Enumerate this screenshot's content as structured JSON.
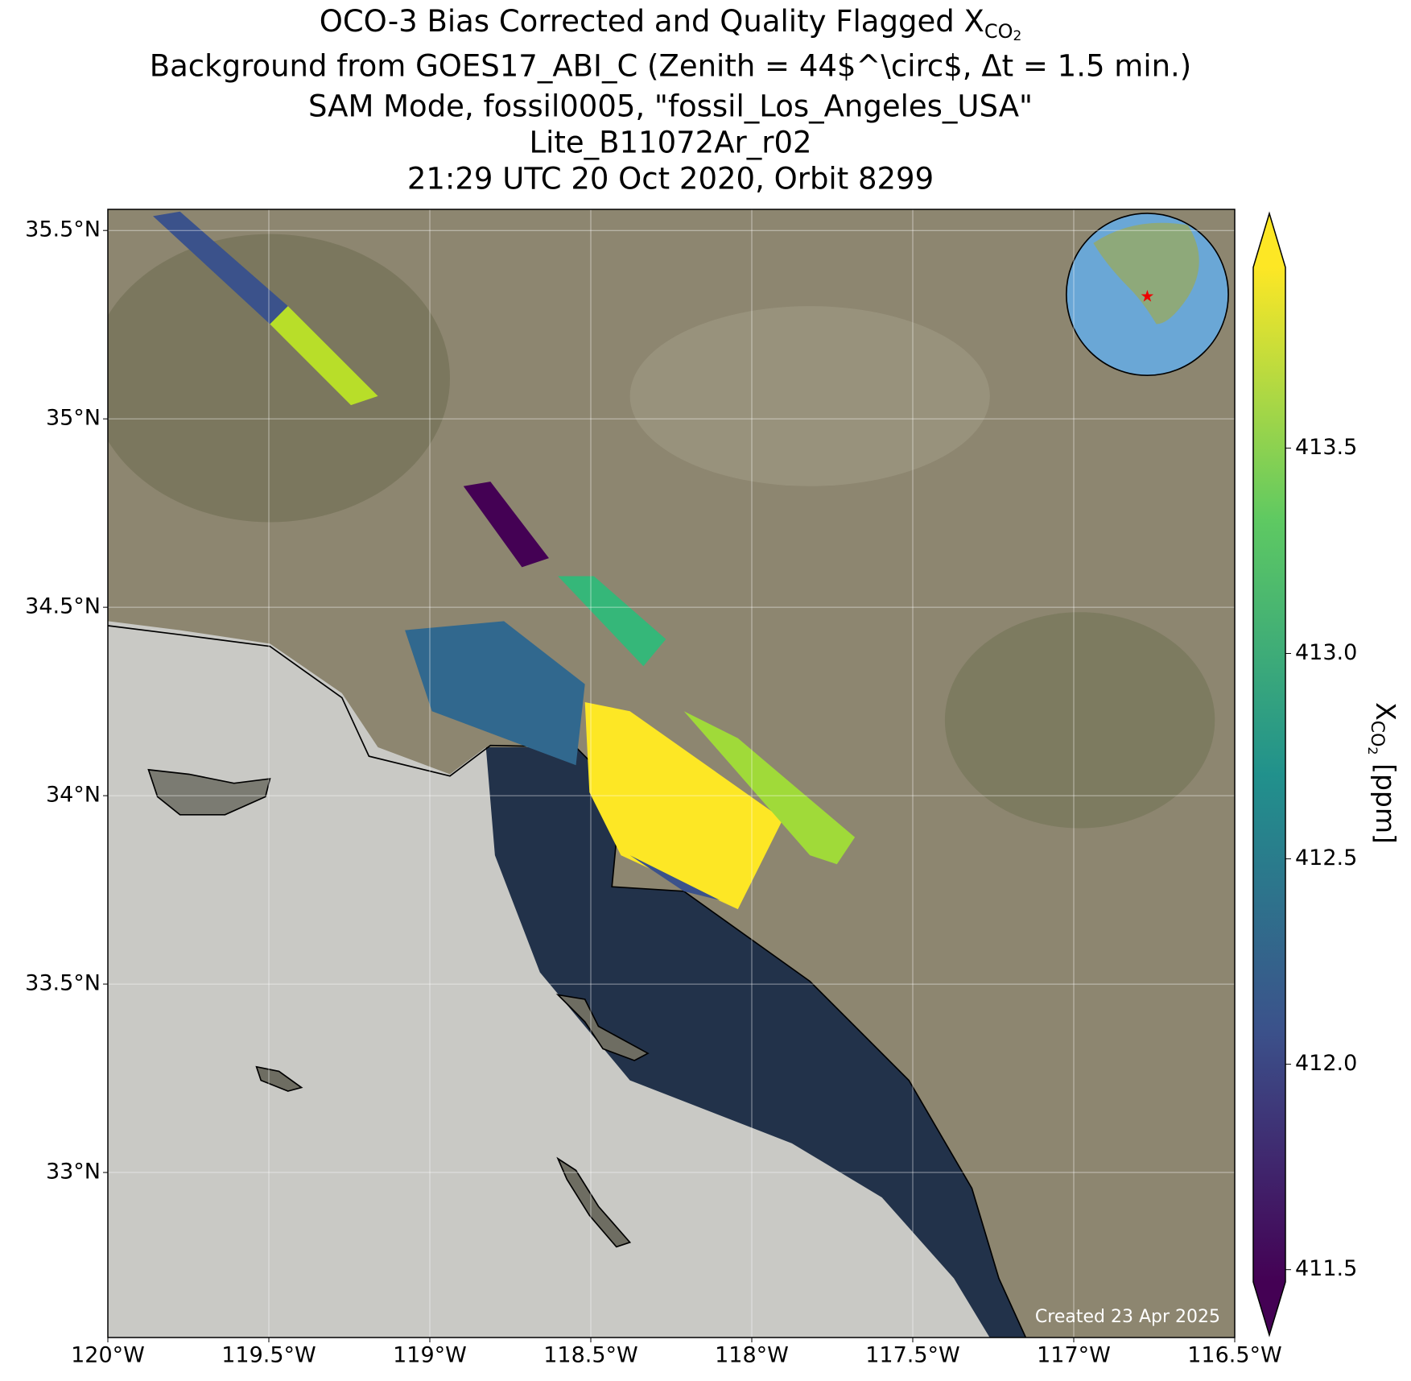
{
  "title": {
    "line1": {
      "text": "OCO-3 Bias Corrected and Quality Flagged X",
      "sub": "CO",
      "subsub": "2"
    },
    "line2": "Background from GOES17_ABI_C (Zenith = 44$^\\circ$, Δt =  1.5 min.)",
    "line3": "SAM Mode, fossil0005, \"fossil_Los_Angeles_USA\"",
    "line4": "Lite_B11072Ar_r02",
    "line5": "21:29 UTC 20 Oct 2020, Orbit 8299"
  },
  "map": {
    "xlim": [
      -120,
      -116.5
    ],
    "ylim": [
      32.562,
      35.556
    ],
    "grid": true,
    "xticks": [
      {
        "value": -120,
        "label": "120°W"
      },
      {
        "value": -119.5,
        "label": "119.5°W"
      },
      {
        "value": -119,
        "label": "119°W"
      },
      {
        "value": -118.5,
        "label": "118.5°W"
      },
      {
        "value": -118,
        "label": "118°W"
      },
      {
        "value": -117.5,
        "label": "117.5°W"
      },
      {
        "value": -117,
        "label": "117°W"
      },
      {
        "value": -116.5,
        "label": "116.5°W"
      }
    ],
    "yticks": [
      {
        "value": 33,
        "label": "33°N"
      },
      {
        "value": 33.5,
        "label": "33.5°N"
      },
      {
        "value": 34,
        "label": "34°N"
      },
      {
        "value": 34.5,
        "label": "34.5°N"
      },
      {
        "value": 35,
        "label": "35°N"
      },
      {
        "value": 35.5,
        "label": "35.5°N"
      }
    ]
  },
  "colorbar": {
    "label": {
      "text": "X",
      "sub": "CO",
      "subsub": "2",
      "unit": " [ppm]"
    },
    "lim": [
      411.47,
      413.94
    ],
    "ticks": [
      {
        "value": 411.5,
        "label": "411.5"
      },
      {
        "value": 412,
        "label": "412.0"
      },
      {
        "value": 412.5,
        "label": "412.5"
      },
      {
        "value": 413,
        "label": "413.0"
      },
      {
        "value": 413.5,
        "label": "413.5"
      }
    ],
    "colors": [
      "#440154",
      "#3b528b",
      "#21918c",
      "#5ec962",
      "#fde725"
    ]
  },
  "footer": "Created 23 Apr 2025"
}
